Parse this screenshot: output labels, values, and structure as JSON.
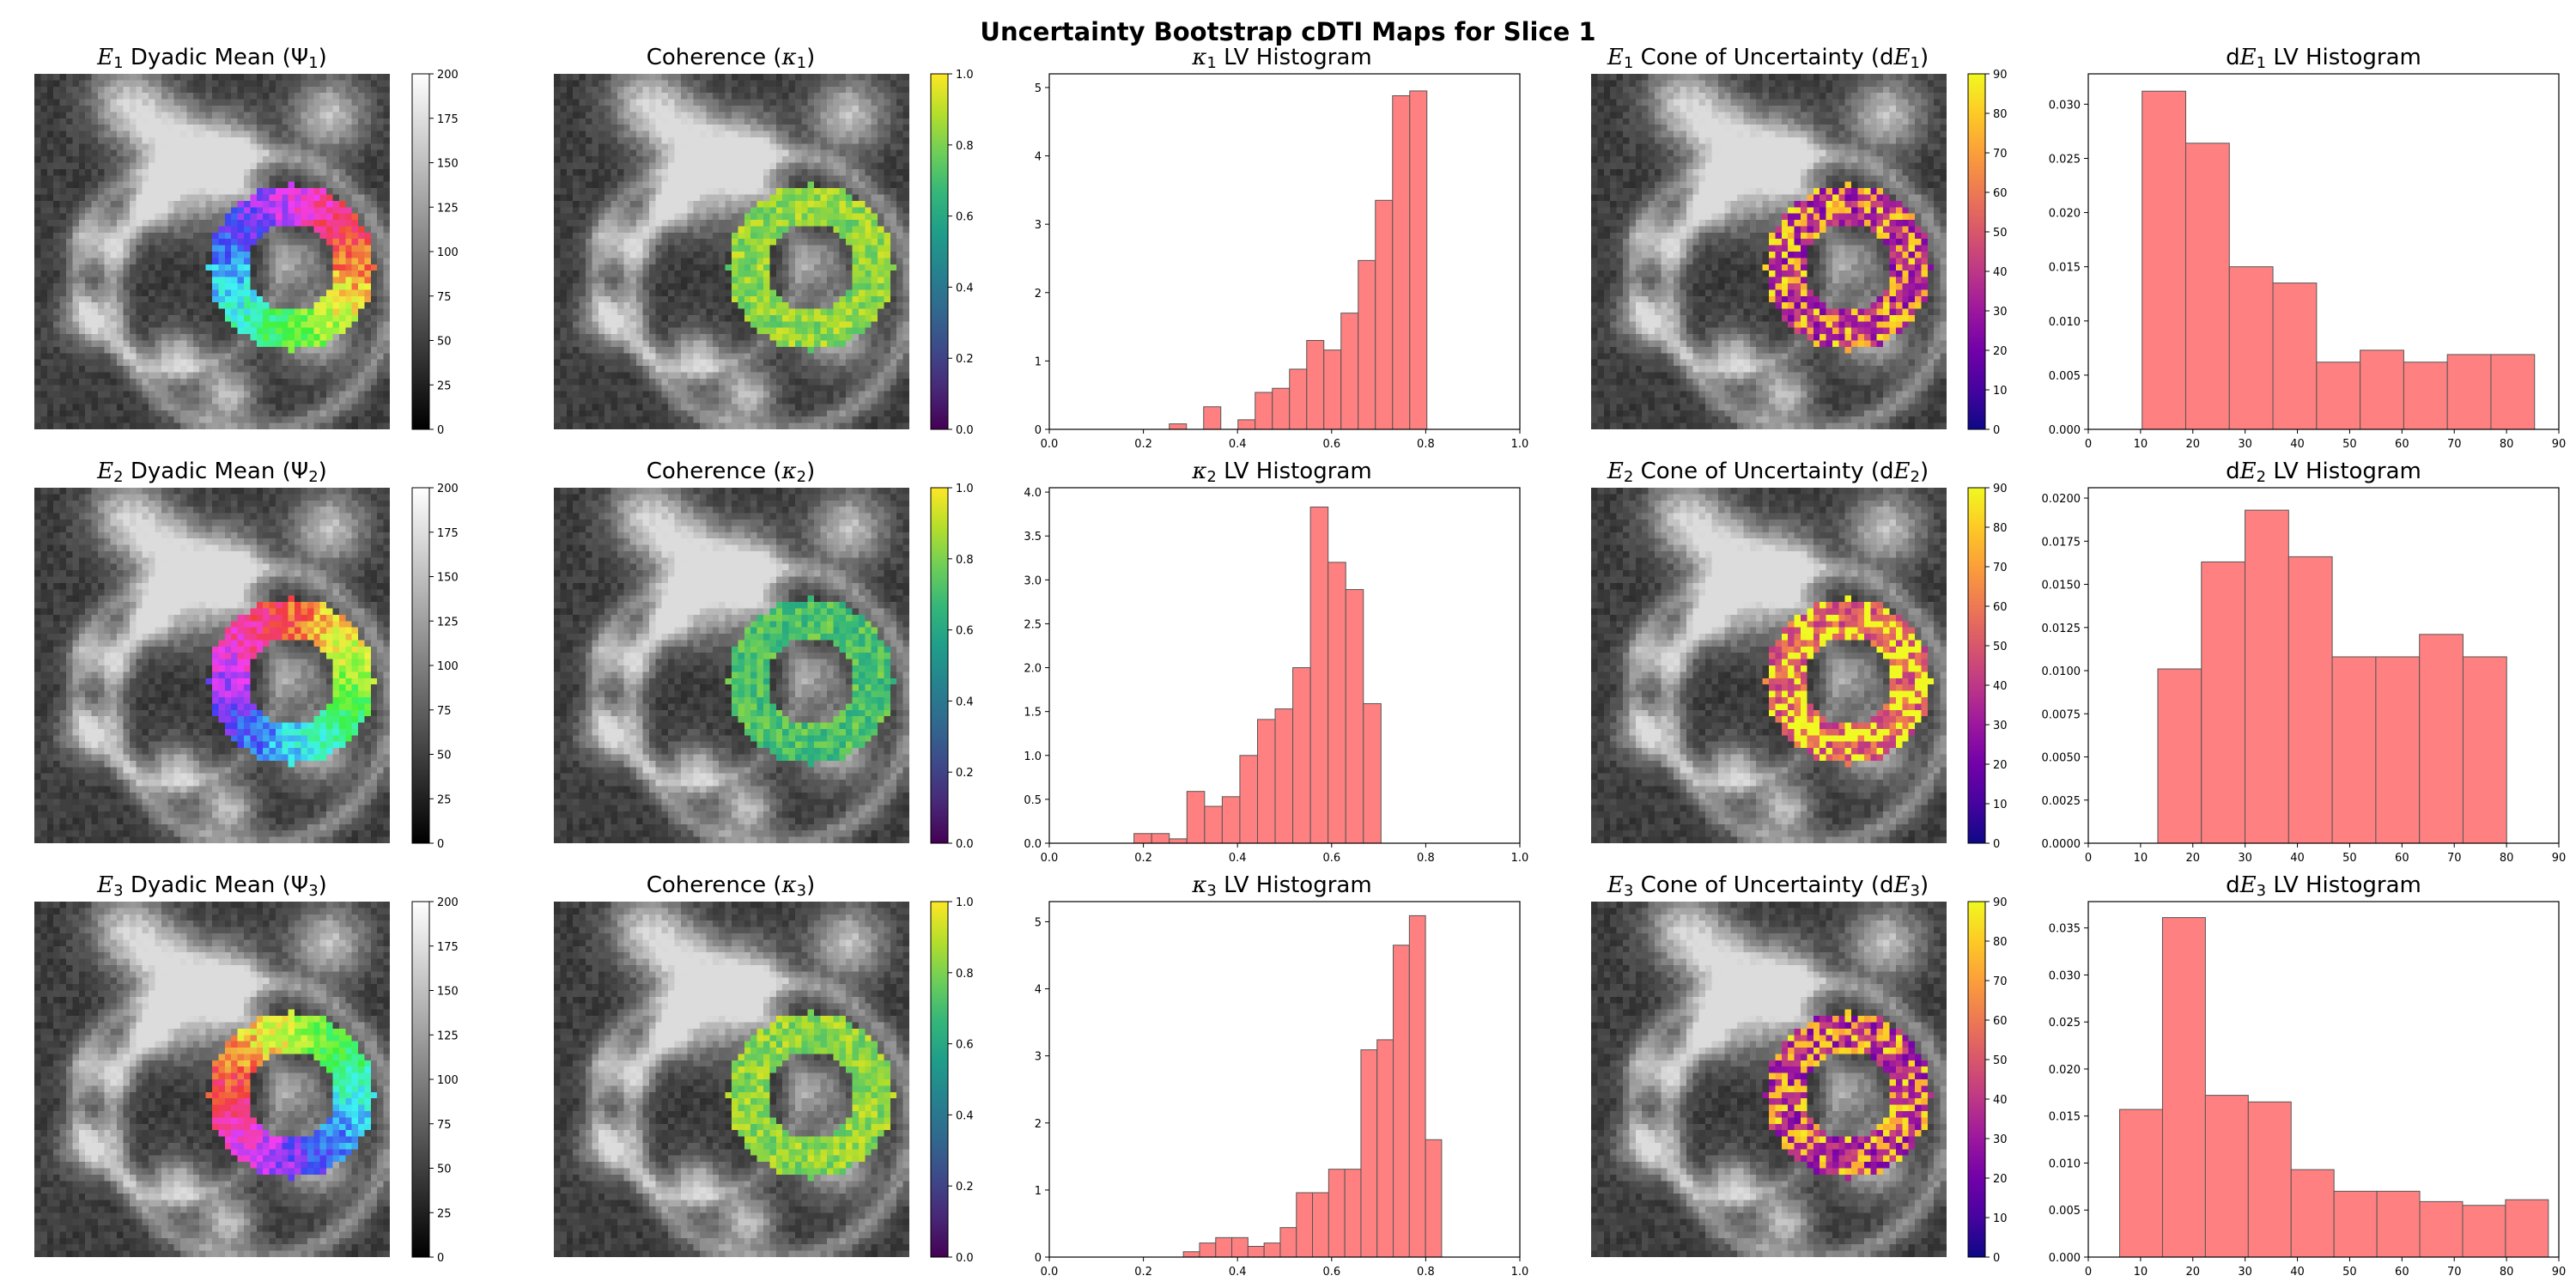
{
  "suptitle": "Uncertainty Bootstrap cDTI Maps for Slice 1",
  "titles": [
    [
      {
        "pre": "",
        "sym": "E",
        "sub": "1",
        "post": " Dyadic Mean  (Ψ",
        "sub2": "1",
        "end": ")"
      },
      {
        "pre": "Coherence (",
        "sym": "κ",
        "sub": "1",
        "post": ")",
        "sub2": "",
        "end": ""
      },
      {
        "pre": "",
        "sym": "κ",
        "sub": "1",
        "post": " LV Histogram",
        "sub2": "",
        "end": ""
      },
      {
        "pre": "",
        "sym": "E",
        "sub": "1",
        "post": " Cone of Uncertainty (d",
        "sym2": "E",
        "sub2": "1",
        "end": ")"
      },
      {
        "pre": "d",
        "sym": "E",
        "sub": "1",
        "post": " LV Histogram",
        "sub2": "",
        "end": ""
      }
    ],
    [
      {
        "pre": "",
        "sym": "E",
        "sub": "2",
        "post": " Dyadic Mean  (Ψ",
        "sub2": "2",
        "end": ")"
      },
      {
        "pre": "Coherence (",
        "sym": "κ",
        "sub": "2",
        "post": ")",
        "sub2": "",
        "end": ""
      },
      {
        "pre": "",
        "sym": "κ",
        "sub": "2",
        "post": " LV Histogram",
        "sub2": "",
        "end": ""
      },
      {
        "pre": "",
        "sym": "E",
        "sub": "2",
        "post": " Cone of Uncertainty (d",
        "sym2": "E",
        "sub2": "2",
        "end": ")"
      },
      {
        "pre": "d",
        "sym": "E",
        "sub": "2",
        "post": " LV Histogram",
        "sub2": "",
        "end": ""
      }
    ],
    [
      {
        "pre": "",
        "sym": "E",
        "sub": "3",
        "post": " Dyadic Mean  (Ψ",
        "sub2": "3",
        "end": ")"
      },
      {
        "pre": "Coherence (",
        "sym": "κ",
        "sub": "3",
        "post": ")",
        "sub2": "",
        "end": ""
      },
      {
        "pre": "",
        "sym": "κ",
        "sub": "3",
        "post": " LV Histogram",
        "sub2": "",
        "end": ""
      },
      {
        "pre": "",
        "sym": "E",
        "sub": "3",
        "post": " Cone of Uncertainty (d",
        "sym2": "E",
        "sub2": "3",
        "end": ")"
      },
      {
        "pre": "d",
        "sym": "E",
        "sub": "3",
        "post": " LV Histogram",
        "sub2": "",
        "end": ""
      }
    ]
  ],
  "colorbars": {
    "gray": {
      "cmap": "gray",
      "ticks": [
        0,
        25,
        50,
        75,
        100,
        125,
        150,
        175,
        200
      ],
      "range": [
        0,
        200
      ],
      "labels": [
        "0",
        "25",
        "50",
        "75",
        "100",
        "125",
        "150",
        "175",
        "200"
      ]
    },
    "viridis": {
      "cmap": "viridis",
      "ticks": [
        0,
        0.2,
        0.4,
        0.6,
        0.8,
        1.0
      ],
      "range": [
        0,
        1
      ],
      "labels": [
        "0.0",
        "0.2",
        "0.4",
        "0.6",
        "0.8",
        "1.0"
      ]
    },
    "plasma": {
      "cmap": "plasma",
      "ticks": [
        0,
        10,
        20,
        30,
        40,
        50,
        60,
        70,
        80,
        90
      ],
      "range": [
        0,
        90
      ],
      "labels": [
        "0",
        "10",
        "20",
        "30",
        "40",
        "50",
        "60",
        "70",
        "80",
        "90"
      ]
    }
  },
  "colors": {
    "bar_fill": "#ff8080",
    "bar_edge": "#555555"
  },
  "chart_data": [
    {
      "type": "bar",
      "title": "κ1 LV Histogram",
      "xlim": [
        0,
        1.0
      ],
      "ylim": [
        0,
        5.2
      ],
      "xticks": [
        0.0,
        0.2,
        0.4,
        0.6,
        0.8,
        1.0
      ],
      "xtick_labels": [
        "0.0",
        "0.2",
        "0.4",
        "0.6",
        "0.8",
        "1.0"
      ],
      "yticks": [
        0,
        1,
        2,
        3,
        4,
        5
      ],
      "ytick_labels": [
        "0",
        "1",
        "2",
        "3",
        "4",
        "5"
      ],
      "bin_start": 0.255,
      "bin_width": 0.0365,
      "values": [
        0.08,
        0,
        0.33,
        0,
        0.14,
        0.54,
        0.6,
        0.88,
        1.3,
        1.16,
        1.7,
        2.47,
        3.35,
        4.88,
        4.95
      ]
    },
    {
      "type": "bar",
      "title": "dE1 LV Histogram",
      "xlim": [
        0,
        90
      ],
      "ylim": [
        0,
        0.0328
      ],
      "xticks": [
        0,
        10,
        20,
        30,
        40,
        50,
        60,
        70,
        80,
        90
      ],
      "xtick_labels": [
        "0",
        "10",
        "20",
        "30",
        "40",
        "50",
        "60",
        "70",
        "80",
        "90"
      ],
      "yticks": [
        0,
        0.005,
        0.01,
        0.015,
        0.02,
        0.025,
        0.03
      ],
      "ytick_labels": [
        "0.000",
        "0.005",
        "0.010",
        "0.015",
        "0.020",
        "0.025",
        "0.030"
      ],
      "bin_start": 10.3,
      "bin_width": 8.34,
      "values": [
        0.0312,
        0.0264,
        0.015,
        0.0135,
        0.0062,
        0.0073,
        0.0062,
        0.0069,
        0.0069
      ]
    },
    {
      "type": "bar",
      "title": "κ2 LV Histogram",
      "xlim": [
        0,
        1.0
      ],
      "ylim": [
        0,
        4.05
      ],
      "xticks": [
        0.0,
        0.2,
        0.4,
        0.6,
        0.8,
        1.0
      ],
      "xtick_labels": [
        "0.0",
        "0.2",
        "0.4",
        "0.6",
        "0.8",
        "1.0"
      ],
      "yticks": [
        0,
        0.5,
        1.0,
        1.5,
        2.0,
        2.5,
        3.0,
        3.5,
        4.0
      ],
      "ytick_labels": [
        "0.0",
        "0.5",
        "1.0",
        "1.5",
        "2.0",
        "2.5",
        "3.0",
        "3.5",
        "4.0"
      ],
      "bin_start": 0.18,
      "bin_width": 0.0375,
      "values": [
        0.11,
        0.11,
        0.05,
        0.59,
        0.42,
        0.53,
        1.0,
        1.41,
        1.53,
        2.0,
        3.83,
        3.2,
        2.89,
        1.59
      ]
    },
    {
      "type": "bar",
      "title": "dE2 LV Histogram",
      "xlim": [
        0,
        90
      ],
      "ylim": [
        0,
        0.0206
      ],
      "xticks": [
        0,
        10,
        20,
        30,
        40,
        50,
        60,
        70,
        80,
        90
      ],
      "xtick_labels": [
        "0",
        "10",
        "20",
        "30",
        "40",
        "50",
        "60",
        "70",
        "80",
        "90"
      ],
      "yticks": [
        0,
        0.0025,
        0.005,
        0.0075,
        0.01,
        0.0125,
        0.015,
        0.0175,
        0.02
      ],
      "ytick_labels": [
        "0.0000",
        "0.0025",
        "0.0050",
        "0.0075",
        "0.0100",
        "0.0125",
        "0.0150",
        "0.0175",
        "0.0200"
      ],
      "bin_start": 13.3,
      "bin_width": 8.34,
      "values": [
        0.0101,
        0.0163,
        0.0193,
        0.0166,
        0.0108,
        0.0108,
        0.0121,
        0.0108
      ]
    },
    {
      "type": "bar",
      "title": "κ3 LV Histogram",
      "xlim": [
        0,
        1.0
      ],
      "ylim": [
        0,
        5.3
      ],
      "xticks": [
        0.0,
        0.2,
        0.4,
        0.6,
        0.8,
        1.0
      ],
      "xtick_labels": [
        "0.0",
        "0.2",
        "0.4",
        "0.6",
        "0.8",
        "1.0"
      ],
      "yticks": [
        0,
        1,
        2,
        3,
        4,
        5
      ],
      "ytick_labels": [
        "0",
        "1",
        "2",
        "3",
        "4",
        "5"
      ],
      "bin_start": 0.285,
      "bin_width": 0.0343,
      "values": [
        0.08,
        0.21,
        0.29,
        0.29,
        0.16,
        0.21,
        0.44,
        0.96,
        0.96,
        1.31,
        1.31,
        3.09,
        3.24,
        4.65,
        5.09,
        1.75
      ]
    },
    {
      "type": "bar",
      "title": "dE3 LV Histogram",
      "xlim": [
        0,
        90
      ],
      "ylim": [
        0,
        0.0378
      ],
      "xticks": [
        0,
        10,
        20,
        30,
        40,
        50,
        60,
        70,
        80,
        90
      ],
      "xtick_labels": [
        "0",
        "10",
        "20",
        "30",
        "40",
        "50",
        "60",
        "70",
        "80",
        "90"
      ],
      "yticks": [
        0,
        0.005,
        0.01,
        0.015,
        0.02,
        0.025,
        0.03,
        0.035
      ],
      "ytick_labels": [
        "0.000",
        "0.005",
        "0.010",
        "0.015",
        "0.020",
        "0.025",
        "0.030",
        "0.035"
      ],
      "bin_start": 6.0,
      "bin_width": 8.2,
      "values": [
        0.0157,
        0.0361,
        0.0172,
        0.0165,
        0.0093,
        0.007,
        0.007,
        0.0059,
        0.0055,
        0.0061
      ]
    }
  ]
}
